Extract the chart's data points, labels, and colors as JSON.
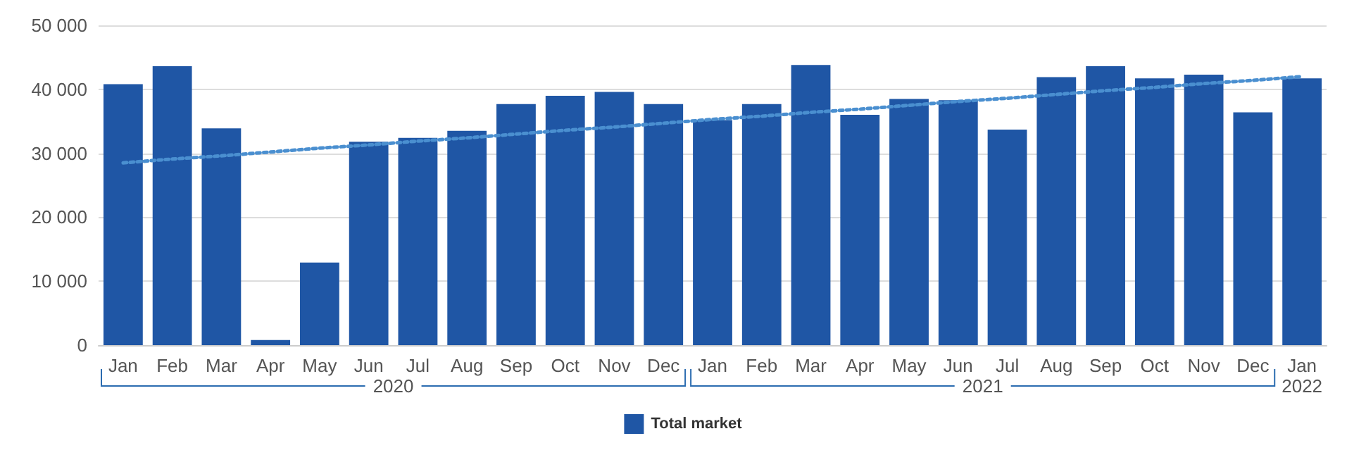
{
  "chart_data": {
    "type": "bar",
    "categories": [
      "Jan",
      "Feb",
      "Mar",
      "Apr",
      "May",
      "Jun",
      "Jul",
      "Aug",
      "Sep",
      "Oct",
      "Nov",
      "Dec",
      "Jan",
      "Feb",
      "Mar",
      "Apr",
      "May",
      "Jun",
      "Jul",
      "Aug",
      "Sep",
      "Oct",
      "Nov",
      "Dec",
      "Jan"
    ],
    "series": [
      {
        "name": "Total market",
        "color": "#1f56a5",
        "values": [
          40800,
          43600,
          33900,
          800,
          12900,
          31800,
          32400,
          33500,
          37700,
          39000,
          39600,
          37700,
          35200,
          37700,
          43800,
          36000,
          38500,
          38300,
          33700,
          41900,
          43600,
          41700,
          42300,
          36400,
          41700
        ]
      },
      {
        "type": "line",
        "color": "#4a8fd0",
        "line_style": "dotted",
        "marker": "none",
        "values": [
          28500,
          29100,
          29600,
          30200,
          30800,
          31300,
          31900,
          32400,
          33000,
          33600,
          34100,
          34700,
          35300,
          35800,
          36400,
          36900,
          37500,
          38100,
          38600,
          39200,
          39800,
          40300,
          40900,
          41400,
          42000
        ]
      }
    ],
    "annotations": [
      "2020",
      "2021",
      "2022"
    ],
    "ylim": [
      0,
      50000
    ],
    "yticks": [
      {
        "value": 0,
        "label": "0"
      },
      {
        "value": 10000,
        "label": "10 000"
      },
      {
        "value": 20000,
        "label": "20 000"
      },
      {
        "value": 30000,
        "label": "30 000"
      },
      {
        "value": 40000,
        "label": "40 000"
      },
      {
        "value": 50000,
        "label": "50 000"
      }
    ],
    "grid": "y",
    "legend": "bottom"
  }
}
